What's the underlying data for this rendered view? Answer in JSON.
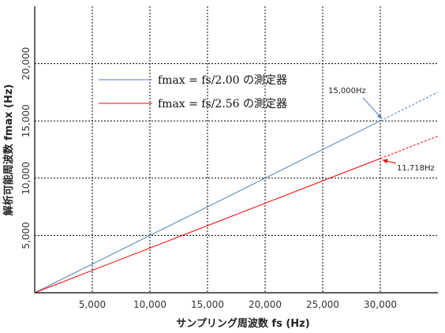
{
  "chart_data": {
    "type": "line",
    "xlabel": "サンプリング周波数 fs (Hz)",
    "ylabel": "解析可能周波数 fmax (Hz)",
    "xlim": [
      0,
      35000
    ],
    "ylim": [
      0,
      25000
    ],
    "x_ticks": [
      "5,000",
      "10,000",
      "15,000",
      "20,000",
      "25,000",
      "30,000"
    ],
    "y_ticks": [
      "5,000",
      "10,000",
      "15,000",
      "20,000"
    ],
    "grid": true,
    "legend_position": "upper-left",
    "series": [
      {
        "name": "fmax = fs/2.00 の測定器",
        "color": "#4f81bd",
        "points": [
          [
            0,
            0
          ],
          [
            30000,
            15000
          ]
        ],
        "dashed_points": [
          [
            30000,
            15000
          ],
          [
            35000,
            17500
          ]
        ]
      },
      {
        "name": "fmax = fs/2.56 の測定器",
        "color": "#ff0000",
        "points": [
          [
            0,
            0
          ],
          [
            30000,
            11718
          ]
        ],
        "dashed_points": [
          [
            30000,
            11718
          ],
          [
            35000,
            13672
          ]
        ]
      }
    ],
    "annotations": [
      {
        "text": "15,000Hz",
        "x": 30000,
        "y": 15000
      },
      {
        "text": "11,718Hz",
        "x": 30000,
        "y": 11718
      }
    ]
  }
}
